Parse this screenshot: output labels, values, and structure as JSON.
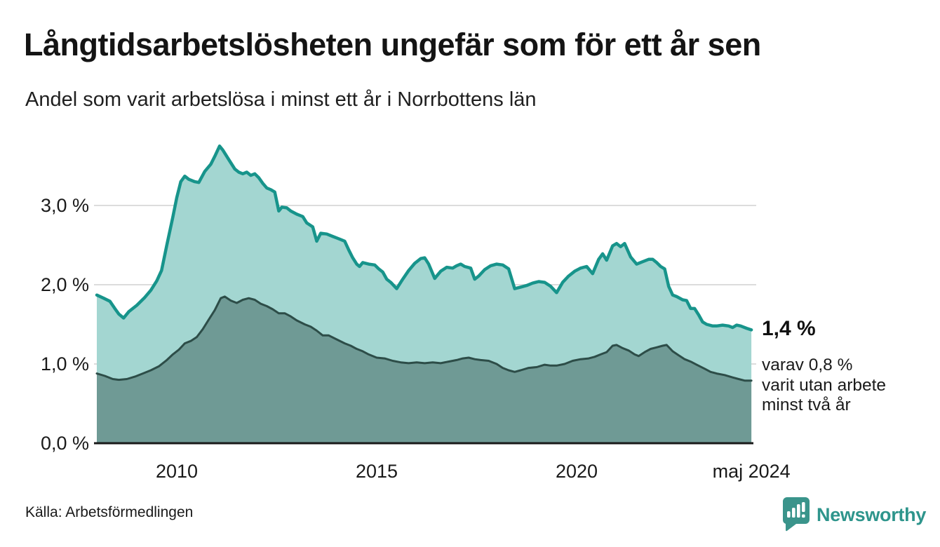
{
  "header": {
    "title": "Långtidsarbetslösheten ungefär som för ett år sen",
    "subtitle": "Andel som varit arbetslösa i minst ett år i Norrbottens län"
  },
  "chart_data": {
    "type": "area",
    "title": "Långtidsarbetslösheten ungefär som för ett år sen",
    "subtitle": "Andel som varit arbetslösa i minst ett år i Norrbottens län",
    "x_domain": [
      2008.0,
      2024.42
    ],
    "ylim": [
      0,
      4
    ],
    "grid": "horizontal",
    "legend_position": "none",
    "yticks": [
      {
        "value": 0,
        "label": "0,0 %"
      },
      {
        "value": 1,
        "label": "1,0 %"
      },
      {
        "value": 2,
        "label": "2,0 %"
      },
      {
        "value": 3,
        "label": "3,0 %"
      }
    ],
    "xticks": [
      {
        "value": 2010,
        "label": "2010"
      },
      {
        "value": 2015,
        "label": "2015"
      },
      {
        "value": 2020,
        "label": "2020"
      },
      {
        "value": 2024.37,
        "label": "maj 2024"
      }
    ],
    "series": [
      {
        "name": "arbetslösa minst ett år",
        "line_color": "#17948b",
        "fill_color": "#a3d6d1",
        "line_width": 4.5,
        "end_value_label": "1,4 %",
        "x": [
          2008.0,
          2008.17,
          2008.33,
          2008.45,
          2008.55,
          2008.67,
          2008.8,
          2009.0,
          2009.2,
          2009.35,
          2009.5,
          2009.62,
          2009.75,
          2009.9,
          2010.0,
          2010.1,
          2010.2,
          2010.3,
          2010.45,
          2010.55,
          2010.7,
          2010.85,
          2010.95,
          2011.07,
          2011.15,
          2011.3,
          2011.45,
          2011.55,
          2011.65,
          2011.75,
          2011.85,
          2011.95,
          2012.05,
          2012.15,
          2012.25,
          2012.35,
          2012.45,
          2012.55,
          2012.63,
          2012.75,
          2012.85,
          2013.0,
          2013.15,
          2013.25,
          2013.4,
          2013.5,
          2013.6,
          2013.75,
          2013.9,
          2014.0,
          2014.1,
          2014.2,
          2014.3,
          2014.4,
          2014.5,
          2014.57,
          2014.65,
          2014.8,
          2014.95,
          2015.05,
          2015.15,
          2015.25,
          2015.35,
          2015.5,
          2015.65,
          2015.8,
          2015.95,
          2016.1,
          2016.2,
          2016.3,
          2016.45,
          2016.6,
          2016.75,
          2016.9,
          2017.0,
          2017.1,
          2017.2,
          2017.35,
          2017.45,
          2017.55,
          2017.7,
          2017.85,
          2018.0,
          2018.15,
          2018.3,
          2018.45,
          2018.6,
          2018.75,
          2018.9,
          2019.05,
          2019.2,
          2019.35,
          2019.5,
          2019.65,
          2019.8,
          2019.95,
          2020.1,
          2020.25,
          2020.4,
          2020.55,
          2020.65,
          2020.75,
          2020.9,
          2021.0,
          2021.1,
          2021.2,
          2021.35,
          2021.5,
          2021.65,
          2021.8,
          2021.9,
          2022.0,
          2022.1,
          2022.2,
          2022.3,
          2022.4,
          2022.5,
          2022.65,
          2022.75,
          2022.85,
          2022.95,
          2023.05,
          2023.15,
          2023.25,
          2023.4,
          2023.5,
          2023.65,
          2023.8,
          2023.9,
          2024.0,
          2024.1,
          2024.25,
          2024.37
        ],
        "y": [
          1.87,
          1.83,
          1.79,
          1.7,
          1.63,
          1.58,
          1.66,
          1.74,
          1.84,
          1.93,
          2.05,
          2.18,
          2.5,
          2.85,
          3.1,
          3.3,
          3.37,
          3.33,
          3.3,
          3.29,
          3.43,
          3.52,
          3.62,
          3.75,
          3.7,
          3.58,
          3.46,
          3.42,
          3.4,
          3.42,
          3.38,
          3.4,
          3.35,
          3.28,
          3.22,
          3.2,
          3.17,
          2.93,
          2.98,
          2.97,
          2.93,
          2.89,
          2.86,
          2.78,
          2.73,
          2.55,
          2.65,
          2.64,
          2.61,
          2.59,
          2.57,
          2.55,
          2.44,
          2.34,
          2.26,
          2.23,
          2.28,
          2.26,
          2.25,
          2.2,
          2.16,
          2.07,
          2.03,
          1.95,
          2.07,
          2.18,
          2.27,
          2.33,
          2.34,
          2.26,
          2.08,
          2.17,
          2.22,
          2.21,
          2.24,
          2.26,
          2.23,
          2.21,
          2.07,
          2.11,
          2.19,
          2.24,
          2.26,
          2.25,
          2.2,
          1.95,
          1.97,
          1.99,
          2.02,
          2.04,
          2.03,
          1.98,
          1.9,
          2.03,
          2.11,
          2.17,
          2.21,
          2.23,
          2.14,
          2.32,
          2.39,
          2.31,
          2.49,
          2.52,
          2.48,
          2.52,
          2.35,
          2.26,
          2.29,
          2.32,
          2.32,
          2.28,
          2.23,
          2.2,
          1.98,
          1.87,
          1.85,
          1.81,
          1.8,
          1.7,
          1.7,
          1.62,
          1.53,
          1.5,
          1.48,
          1.48,
          1.49,
          1.48,
          1.46,
          1.49,
          1.48,
          1.45,
          1.43
        ]
      },
      {
        "name": "utan arbete minst två år",
        "line_color": "#2d4d48",
        "fill_color": "#6f9a95",
        "line_width": 3,
        "end_value_label": "0,8 %",
        "x": [
          2008.0,
          2008.2,
          2008.4,
          2008.55,
          2008.75,
          2008.95,
          2009.15,
          2009.35,
          2009.55,
          2009.75,
          2009.9,
          2010.05,
          2010.2,
          2010.35,
          2010.5,
          2010.65,
          2010.8,
          2010.95,
          2011.1,
          2011.2,
          2011.35,
          2011.5,
          2011.65,
          2011.8,
          2011.95,
          2012.1,
          2012.25,
          2012.4,
          2012.55,
          2012.7,
          2012.85,
          2013.0,
          2013.2,
          2013.35,
          2013.5,
          2013.65,
          2013.8,
          2014.0,
          2014.2,
          2014.35,
          2014.5,
          2014.65,
          2014.8,
          2015.0,
          2015.2,
          2015.4,
          2015.6,
          2015.8,
          2016.0,
          2016.2,
          2016.4,
          2016.6,
          2016.8,
          2017.0,
          2017.15,
          2017.3,
          2017.45,
          2017.6,
          2017.8,
          2018.0,
          2018.15,
          2018.3,
          2018.45,
          2018.6,
          2018.8,
          2019.0,
          2019.2,
          2019.35,
          2019.5,
          2019.7,
          2019.9,
          2020.1,
          2020.3,
          2020.45,
          2020.6,
          2020.75,
          2020.9,
          2021.0,
          2021.15,
          2021.3,
          2021.45,
          2021.55,
          2021.7,
          2021.85,
          2022.0,
          2022.15,
          2022.25,
          2022.4,
          2022.55,
          2022.7,
          2022.85,
          2023.0,
          2023.2,
          2023.35,
          2023.5,
          2023.7,
          2023.9,
          2024.05,
          2024.2,
          2024.37
        ],
        "y": [
          0.88,
          0.85,
          0.81,
          0.8,
          0.81,
          0.84,
          0.88,
          0.92,
          0.97,
          1.05,
          1.12,
          1.18,
          1.26,
          1.29,
          1.34,
          1.44,
          1.56,
          1.68,
          1.83,
          1.85,
          1.8,
          1.77,
          1.81,
          1.83,
          1.81,
          1.76,
          1.73,
          1.69,
          1.64,
          1.64,
          1.6,
          1.55,
          1.5,
          1.47,
          1.42,
          1.36,
          1.36,
          1.31,
          1.26,
          1.23,
          1.19,
          1.16,
          1.12,
          1.08,
          1.07,
          1.04,
          1.02,
          1.01,
          1.02,
          1.01,
          1.02,
          1.01,
          1.03,
          1.05,
          1.07,
          1.08,
          1.06,
          1.05,
          1.04,
          1.0,
          0.95,
          0.92,
          0.9,
          0.92,
          0.95,
          0.96,
          0.99,
          0.98,
          0.98,
          1.0,
          1.04,
          1.06,
          1.07,
          1.09,
          1.12,
          1.15,
          1.23,
          1.24,
          1.2,
          1.17,
          1.12,
          1.1,
          1.15,
          1.19,
          1.21,
          1.23,
          1.24,
          1.16,
          1.11,
          1.06,
          1.03,
          0.99,
          0.94,
          0.9,
          0.88,
          0.86,
          0.83,
          0.81,
          0.79,
          0.79
        ]
      }
    ],
    "annotations": {
      "endpoint_label": "1,4 %",
      "note": "varav 0,8 %\nvarit utan arbete\nminst två år"
    }
  },
  "colors": {
    "background": "#ffffff",
    "gridline": "#dcdcdc",
    "axis_line": "#1a1a1a",
    "primary_line": "#17948b",
    "primary_fill": "#a3d6d1",
    "secondary_line": "#2d4d48",
    "secondary_fill": "#6f9a95",
    "brand_teal": "#2e958c"
  },
  "footer": {
    "source": "Källa: Arbetsförmedlingen",
    "brand": "Newsworthy"
  }
}
